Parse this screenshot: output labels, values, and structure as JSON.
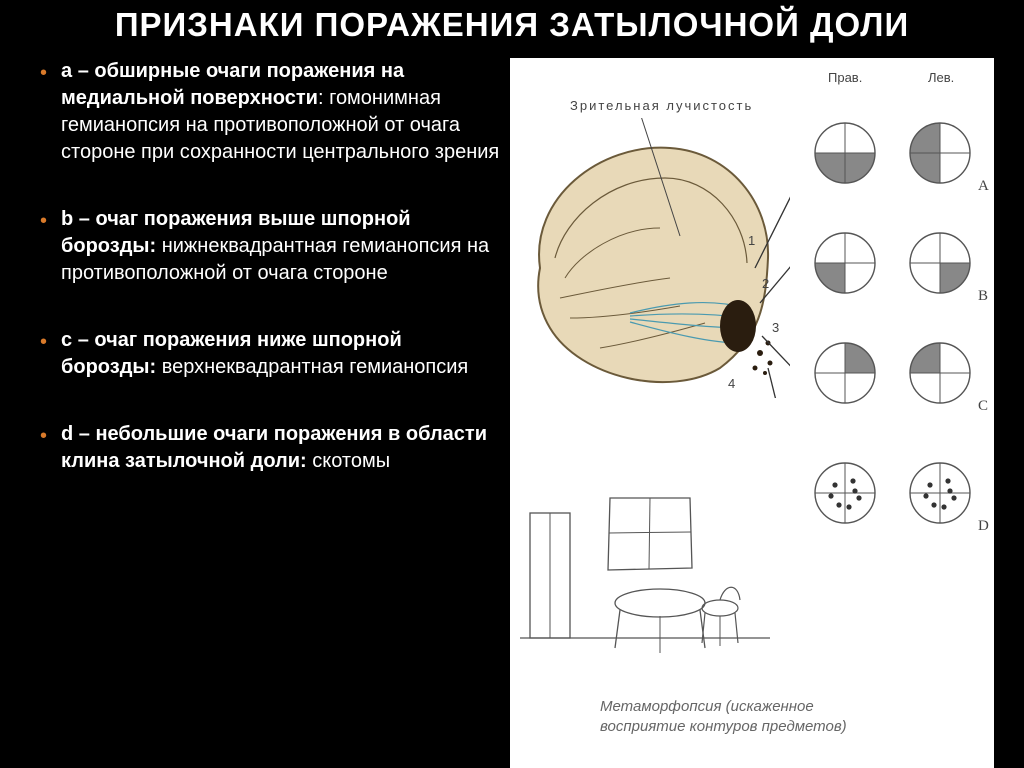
{
  "title": "ПРИЗНАКИ ПОРАЖЕНИЯ ЗАТЫЛОЧНОЙ ДОЛИ",
  "bullets": [
    {
      "lead": "а – обширные очаги поражения на медиальной поверхности",
      "rest": ": гомонимная гемианопсия на противоположной от очага стороне при сохранности центрального зрения"
    },
    {
      "lead": "b – очаг поражения выше шпорной борозды:",
      "rest": " нижнеквадрантная гемианопсия на противоположной от очага стороне"
    },
    {
      "lead": "c – очаг поражения ниже шпорной борозды:",
      "rest": " верхнеквадрантная гемианопсия"
    },
    {
      "lead": "d – небольшие очаги поражения в области клина затылочной доли:",
      "rest": " скотомы"
    }
  ],
  "diagram": {
    "header_right": "Прав.",
    "header_left": "Лев.",
    "brain_label": "Зрительная лучистость",
    "rows": [
      "A",
      "B",
      "C",
      "D"
    ],
    "nums": [
      "1",
      "2",
      "3",
      "4"
    ],
    "caption1": "Метаморфопсия (искаженное",
    "caption2": "восприятие контуров предметов)",
    "fields": {
      "A": {
        "r": [
          0,
          0,
          1,
          1
        ],
        "l": [
          1,
          0,
          0,
          1
        ]
      },
      "B": {
        "r": [
          0,
          0,
          0,
          1
        ],
        "l": [
          0,
          0,
          1,
          0
        ]
      },
      "C": {
        "r": [
          0,
          1,
          0,
          0
        ],
        "l": [
          1,
          0,
          0,
          0
        ]
      },
      "D": {
        "scot": true
      }
    },
    "circle_stroke": "#555",
    "circle_r": 30,
    "fill_dark": "#888",
    "scot_fill": "#333"
  }
}
